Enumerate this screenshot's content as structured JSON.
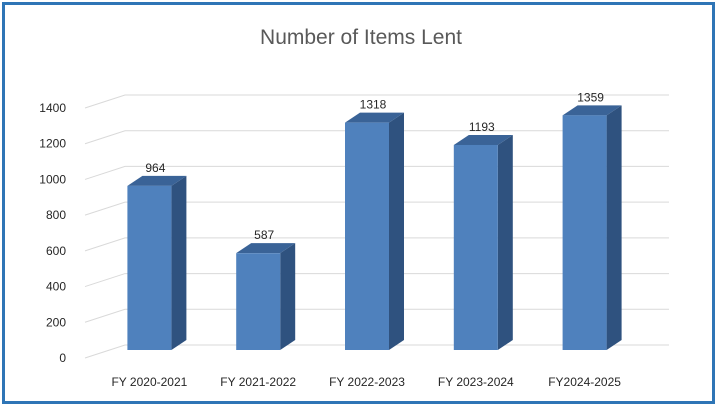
{
  "chart_data": {
    "type": "bar",
    "title": "Number of Items Lent",
    "categories": [
      "FY 2020-2021",
      "FY 2021-2022",
      "FY 2022-2023",
      "FY 2023-2024",
      "FY2024-2025"
    ],
    "values": [
      964,
      587,
      1318,
      1193,
      1359
    ],
    "data_labels": [
      "964",
      "587",
      "1318",
      "1193",
      "1359"
    ],
    "ylim": [
      0,
      1400
    ],
    "y_ticks": [
      "0",
      "200",
      "400",
      "600",
      "800",
      "1000",
      "1200",
      "1400"
    ],
    "grid": true,
    "legend": "none",
    "style": "3d-column",
    "colors": {
      "bar_front": "#4F81BD",
      "bar_side": "#2F527F",
      "bar_top": "#3A6397",
      "border": "#2E75B6"
    }
  }
}
